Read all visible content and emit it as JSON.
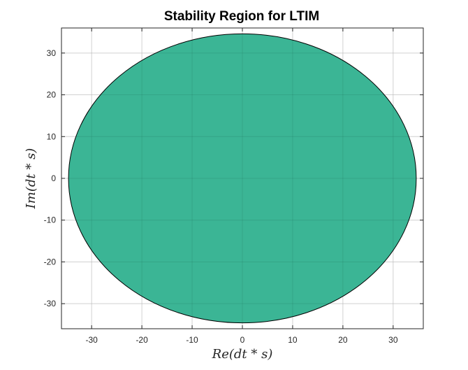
{
  "chart_data": {
    "type": "area",
    "title": "Stability Region for LTIM",
    "xlabel": "Re(dt * s)",
    "ylabel": "Im(dt * s)",
    "xlim": [
      -36,
      36
    ],
    "ylim": [
      -36,
      36
    ],
    "xticks": [
      -30,
      -20,
      -10,
      0,
      10,
      20,
      30
    ],
    "yticks": [
      -30,
      -20,
      -10,
      0,
      10,
      20,
      30
    ],
    "grid": true,
    "region": {
      "shape": "disk",
      "center": [
        0,
        0
      ],
      "radius": 34.6,
      "fill_color": "#2aaf8c",
      "fill_opacity": 0.92,
      "edge_color": "#000000"
    }
  }
}
